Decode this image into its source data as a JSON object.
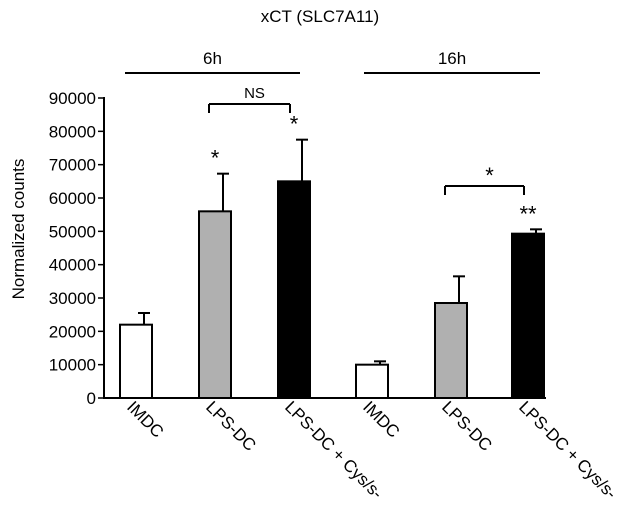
{
  "chart_data": {
    "type": "bar",
    "title": "xCT (SLC7A11)",
    "ylabel": "Normalized counts",
    "xlabel": "",
    "ylim": [
      0,
      90000
    ],
    "yticks": [
      "0",
      "10000",
      "20000",
      "30000",
      "40000",
      "50000",
      "60000",
      "70000",
      "80000",
      "90000"
    ],
    "groups": [
      {
        "label": "6h",
        "categories": [
          "IMDC",
          "LPS-DC",
          "LPS-DC + Cys/s-"
        ]
      },
      {
        "label": "16h",
        "categories": [
          "IMDC",
          "LPS-DC",
          "LPS-DC + Cys/s-"
        ]
      }
    ],
    "categories": [
      "IMDC",
      "LPS-DC",
      "LPS-DC + Cys/s-",
      "IMDC",
      "LPS-DC",
      "LPS-DC + Cys/s-"
    ],
    "values": [
      22000,
      56000,
      65000,
      10000,
      28500,
      49300
    ],
    "errors": [
      3500,
      11300,
      12500,
      1000,
      8000,
      1300
    ],
    "bar_colors": [
      "#ffffff",
      "#b0b0b0",
      "#000000",
      "#ffffff",
      "#b0b0b0",
      "#000000"
    ],
    "significance_marks": [
      "",
      "*",
      "*",
      "",
      "",
      "**"
    ],
    "comparisons": [
      {
        "from": 1,
        "to": 2,
        "label": "NS"
      },
      {
        "from": 4,
        "to": 5,
        "label": "*"
      }
    ]
  }
}
